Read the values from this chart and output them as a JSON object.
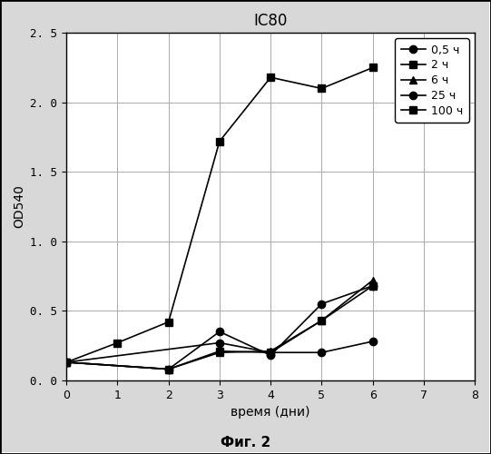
{
  "title": "IC80",
  "xlabel": "время (дни)",
  "ylabel": "OD540",
  "caption": "Фиг. 2",
  "xlim": [
    0,
    8
  ],
  "ylim": [
    0.0,
    2.5
  ],
  "yticks": [
    0.0,
    0.5,
    1.0,
    1.5,
    2.0,
    2.5
  ],
  "ytick_labels": [
    "0. 0",
    "0. 5",
    "1. 0",
    "1. 5",
    "2. 0",
    "2. 5"
  ],
  "xticks": [
    0,
    1,
    2,
    3,
    4,
    5,
    6,
    7,
    8
  ],
  "series": [
    {
      "label": "0,5 ч",
      "x": [
        0,
        3,
        4,
        5,
        6
      ],
      "y": [
        0.13,
        0.27,
        0.2,
        0.2,
        0.28
      ],
      "marker": "o",
      "color": "#000000",
      "markerfacecolor": "#000000",
      "markersize": 6,
      "linewidth": 1.2
    },
    {
      "label": "2 ч",
      "x": [
        0,
        1,
        2,
        3,
        4,
        5,
        6
      ],
      "y": [
        0.13,
        0.27,
        0.42,
        1.72,
        2.18,
        2.1,
        2.25
      ],
      "marker": "s",
      "color": "#000000",
      "markerfacecolor": "#000000",
      "markersize": 6,
      "linewidth": 1.2
    },
    {
      "label": "6 ч",
      "x": [
        0,
        2,
        3,
        4,
        5,
        6
      ],
      "y": [
        0.13,
        0.08,
        0.2,
        0.21,
        0.43,
        0.72
      ],
      "marker": "^",
      "color": "#000000",
      "markerfacecolor": "#000000",
      "markersize": 6,
      "linewidth": 1.2
    },
    {
      "label": "25 ч",
      "x": [
        0,
        2,
        3,
        4,
        5,
        6
      ],
      "y": [
        0.13,
        0.08,
        0.35,
        0.18,
        0.55,
        0.68
      ],
      "marker": "o",
      "color": "#000000",
      "markerfacecolor": "#000000",
      "markersize": 6,
      "linewidth": 1.2
    },
    {
      "label": "100 ч",
      "x": [
        0,
        2,
        3,
        4,
        5,
        6
      ],
      "y": [
        0.13,
        0.08,
        0.21,
        0.2,
        0.43,
        0.68
      ],
      "marker": "s",
      "color": "#000000",
      "markerfacecolor": "#000000",
      "markersize": 6,
      "linewidth": 1.2
    }
  ],
  "fig_bg": "#d8d8d8",
  "plot_bg": "#ffffff",
  "grid_color": "#aaaaaa",
  "border_color": "#000000",
  "title_fontsize": 12,
  "label_fontsize": 10,
  "tick_fontsize": 9,
  "legend_fontsize": 9
}
